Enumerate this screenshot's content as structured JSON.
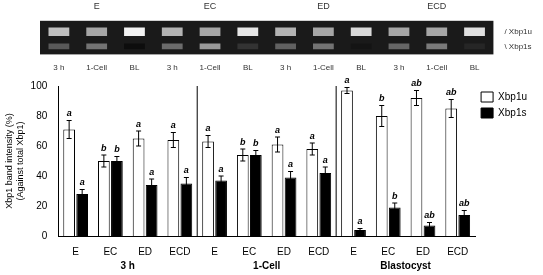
{
  "chart_data": [
    {
      "type": "gel",
      "categories": [
        "3 h",
        "1-Cell",
        "BL",
        "3 h",
        "1-Cell",
        "BL",
        "3 h",
        "1-Cell",
        "BL",
        "3 h",
        "1-Cell",
        "BL"
      ],
      "groups": [
        "E",
        "EC",
        "ED",
        "ECD"
      ],
      "series": [
        {
          "name": "/ Xbp1u",
          "values": [
            0.75,
            0.65,
            0.95,
            0.7,
            0.65,
            0.9,
            0.7,
            0.65,
            0.85,
            0.65,
            0.65,
            0.88
          ]
        },
        {
          "name": "\\ Xbp1s",
          "values": [
            0.35,
            0.45,
            0.05,
            0.42,
            0.6,
            0.2,
            0.38,
            0.45,
            0.08,
            0.4,
            0.48,
            0.15
          ]
        }
      ]
    },
    {
      "type": "bar",
      "ylabel": "Xbp1 band intensity (%)\n(Against total Xbp1)",
      "categories": [
        "E",
        "EC",
        "ED",
        "ECD",
        "E",
        "EC",
        "ED",
        "ECD",
        "E",
        "EC",
        "ED",
        "ECD"
      ],
      "groups": [
        "3 h",
        "1-Cell",
        "Blastocyst"
      ],
      "series": [
        {
          "name": "Xbp1u",
          "color": "#ffffff",
          "values": [
            71.0,
            50.0,
            65.0,
            64.0,
            63.0,
            54.0,
            61.0,
            58.0,
            97.0,
            80.0,
            92.0,
            85.0
          ],
          "errors": [
            6.0,
            4.0,
            5.0,
            5.0,
            4.0,
            4.0,
            5.0,
            4.0,
            2.0,
            7.0,
            5.0,
            6.0
          ],
          "annotations": [
            "a",
            "b",
            "a",
            "a",
            "a",
            "b",
            "a",
            "a",
            "a",
            "b",
            "ab",
            "ab"
          ]
        },
        {
          "name": "Xbp1s",
          "color": "#000000",
          "values": [
            28.0,
            50.0,
            34.0,
            35.0,
            37.0,
            54.0,
            39.0,
            42.0,
            4.0,
            19.0,
            7.0,
            14.0
          ],
          "errors": [
            3.0,
            3.0,
            4.0,
            4.0,
            3.0,
            3.0,
            4.0,
            4.0,
            1.0,
            3.0,
            2.0,
            3.0
          ],
          "annotations": [
            "a",
            "b",
            "a",
            "a",
            "a",
            "b",
            "a",
            "a",
            "a",
            "b",
            "ab",
            "ab"
          ]
        }
      ],
      "ylim": [
        0.0,
        100.0
      ],
      "yticks": [
        0.0,
        20.0,
        40.0,
        60.0,
        80.0,
        100.0
      ],
      "grid": false,
      "legend": "upper right"
    }
  ]
}
